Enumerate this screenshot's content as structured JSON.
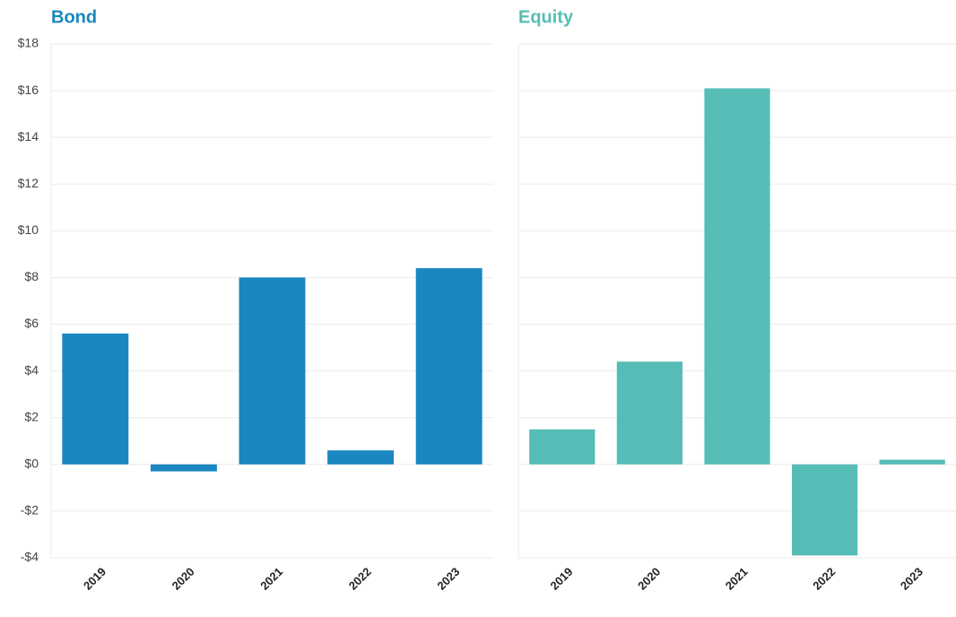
{
  "chart_data": [
    {
      "type": "bar",
      "title": "Bond",
      "color": "#1a87c0",
      "categories": [
        "2019",
        "2020",
        "2021",
        "2022",
        "2023"
      ],
      "values": [
        5.6,
        -0.3,
        8.0,
        0.6,
        8.4
      ],
      "ylim": [
        -4,
        18
      ],
      "yticks": [
        {
          "value": -4,
          "label": "-$4"
        },
        {
          "value": -2,
          "label": "-$2"
        },
        {
          "value": 0,
          "label": "$0"
        },
        {
          "value": 2,
          "label": "$2"
        },
        {
          "value": 4,
          "label": "$4"
        },
        {
          "value": 6,
          "label": "$6"
        },
        {
          "value": 8,
          "label": "$8"
        },
        {
          "value": 10,
          "label": "$10"
        },
        {
          "value": 12,
          "label": "$12"
        },
        {
          "value": 14,
          "label": "$14"
        },
        {
          "value": 16,
          "label": "$16"
        },
        {
          "value": 18,
          "label": "$18"
        }
      ],
      "grid": true
    },
    {
      "type": "bar",
      "title": "Equity",
      "color": "#56bdb6",
      "categories": [
        "2019",
        "2020",
        "2021",
        "2022",
        "2023"
      ],
      "values": [
        1.5,
        4.4,
        16.1,
        -3.9,
        0.2
      ],
      "ylim": [
        -4,
        18
      ],
      "grid": true
    }
  ]
}
